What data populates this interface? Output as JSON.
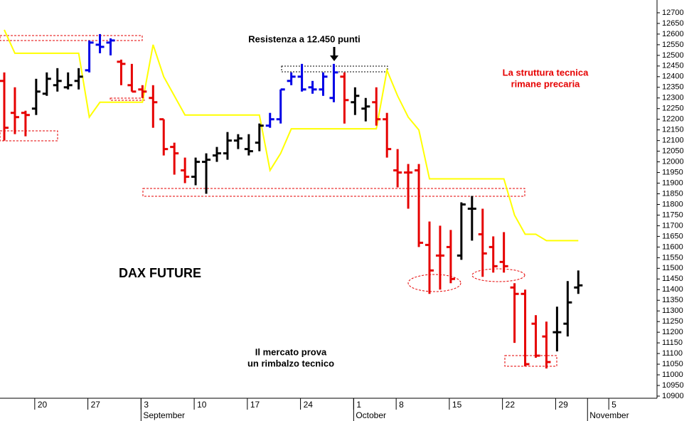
{
  "chart_data": {
    "type": "ohlc",
    "title": "DAX FUTURE",
    "annotations": {
      "resistance": "Resistenza a 12.450 punti",
      "structure": [
        "La struttura tecnica",
        "rimane precaria"
      ],
      "rebound": [
        "Il mercato prova",
        "un rimbalzo tecnico"
      ]
    },
    "categories": [
      null,
      null,
      null,
      "20",
      null,
      null,
      null,
      null,
      "27",
      null,
      null,
      null,
      null,
      "3",
      null,
      null,
      null,
      null,
      "10",
      null,
      null,
      null,
      null,
      "17",
      null,
      null,
      null,
      null,
      "24",
      null,
      null,
      null,
      null,
      "1",
      null,
      null,
      null,
      "8",
      null,
      null,
      null,
      null,
      "15",
      null,
      null,
      null,
      null,
      "22",
      null,
      null,
      null,
      null,
      "29",
      null,
      null,
      null,
      null,
      "5",
      null,
      null,
      null,
      null
    ],
    "category_months": [
      null,
      null,
      null,
      null,
      null,
      null,
      null,
      null,
      null,
      null,
      null,
      null,
      null,
      "September",
      null,
      null,
      null,
      null,
      null,
      null,
      null,
      null,
      null,
      null,
      null,
      null,
      null,
      null,
      null,
      null,
      null,
      null,
      null,
      "October",
      null,
      null,
      null,
      null,
      null,
      null,
      null,
      null,
      null,
      null,
      null,
      null,
      null,
      null,
      null,
      null,
      null,
      null,
      null,
      null,
      null,
      "November",
      null,
      null,
      null,
      null,
      null,
      null
    ],
    "open": [
      12380,
      12230,
      12230,
      12250,
      12320,
      12360,
      12350,
      12380,
      12430,
      12550,
      12560,
      12470,
      12360,
      12340,
      12300,
      12200,
      12070,
      11960,
      11930,
      12000,
      12030,
      12040,
      12100,
      12060,
      12090,
      12170,
      12200,
      12380,
      12400,
      12350,
      12340,
      12300,
      12400,
      12280,
      12250,
      12280,
      12200,
      11960,
      11950,
      11960,
      11610,
      11560,
      11600,
      11560,
      11780,
      11660,
      11600,
      11530,
      11410,
      11380,
      11240,
      11180,
      11200,
      11240,
      11410,
      null,
      null,
      null,
      null,
      null,
      null,
      null
    ],
    "high": [
      12420,
      12350,
      12240,
      12390,
      12420,
      12440,
      12420,
      12440,
      12570,
      12600,
      12580,
      12480,
      12460,
      12360,
      12360,
      12200,
      12090,
      12020,
      12020,
      12040,
      12070,
      12140,
      12130,
      12130,
      12180,
      12230,
      12340,
      12420,
      12460,
      12380,
      12420,
      12460,
      12420,
      12350,
      12300,
      12350,
      12230,
      12060,
      11990,
      11990,
      11720,
      11700,
      11680,
      11810,
      11840,
      11780,
      11650,
      11670,
      11430,
      11400,
      11280,
      11250,
      11320,
      11440,
      11490,
      null,
      null,
      null,
      null,
      null,
      null,
      null
    ],
    "low": [
      12100,
      12130,
      12120,
      12220,
      12310,
      12330,
      12340,
      12340,
      12420,
      12510,
      12500,
      12360,
      12330,
      12300,
      12160,
      12030,
      11940,
      11900,
      11890,
      11850,
      12000,
      12010,
      12060,
      12030,
      12050,
      12160,
      12180,
      12360,
      12330,
      12320,
      12310,
      12280,
      12180,
      12220,
      12190,
      12170,
      12020,
      11880,
      11780,
      11600,
      11380,
      11400,
      11430,
      11540,
      11630,
      11460,
      11480,
      11480,
      11150,
      11040,
      11080,
      11030,
      11110,
      11180,
      11380,
      null,
      null,
      null,
      null,
      null,
      null,
      null
    ],
    "close": [
      12160,
      12210,
      12220,
      12330,
      12390,
      12380,
      12360,
      12400,
      12560,
      12540,
      12570,
      12460,
      12330,
      12330,
      12280,
      12060,
      12040,
      11930,
      12000,
      12010,
      12040,
      12100,
      12110,
      12050,
      12170,
      12200,
      12340,
      12400,
      12340,
      12340,
      12400,
      12420,
      12290,
      12310,
      12260,
      12200,
      12060,
      11950,
      11950,
      11620,
      11490,
      11560,
      11450,
      11800,
      11780,
      11570,
      11510,
      11510,
      11380,
      11050,
      11090,
      11060,
      11200,
      11340,
      11420,
      null,
      null,
      null,
      null,
      null,
      null,
      null
    ],
    "bar_colors": [
      "#e60000",
      "#e60000",
      "#e60000",
      "#000000",
      "#000000",
      "#000000",
      "#000000",
      "#000000",
      "#0000e6",
      "#0000e6",
      "#0000e6",
      "#e60000",
      "#e60000",
      "#e60000",
      "#e60000",
      "#e60000",
      "#e60000",
      "#e60000",
      "#000000",
      "#000000",
      "#000000",
      "#000000",
      "#000000",
      "#000000",
      "#000000",
      "#0000e6",
      "#0000e6",
      "#0000e6",
      "#0000e6",
      "#0000e6",
      "#0000e6",
      "#0000e6",
      "#e60000",
      "#000000",
      "#000000",
      "#e60000",
      "#e60000",
      "#e60000",
      "#e60000",
      "#e60000",
      "#e60000",
      "#e60000",
      "#e60000",
      "#000000",
      "#000000",
      "#e60000",
      "#e60000",
      "#e60000",
      "#e60000",
      "#e60000",
      "#e60000",
      "#e60000",
      "#000000",
      "#000000",
      "#000000",
      null,
      null,
      null,
      null,
      null,
      null,
      null
    ],
    "line": {
      "color": "#ffff00",
      "values": [
        12620,
        12510,
        12510,
        12510,
        12510,
        12510,
        12510,
        12510,
        12210,
        12280,
        12280,
        12280,
        12280,
        12280,
        12550,
        12400,
        12310,
        12220,
        12220,
        12220,
        12220,
        12220,
        12220,
        12220,
        12220,
        11960,
        12040,
        12155,
        12155,
        12155,
        12155,
        12155,
        12155,
        12155,
        12155,
        12155,
        12430,
        12310,
        12210,
        12150,
        11920,
        11920,
        11920,
        11920,
        11920,
        11920,
        11920,
        11920,
        11750,
        11660,
        11660,
        11630,
        11630,
        11630,
        11630,
        null,
        null,
        null,
        null,
        null,
        null,
        null
      ]
    },
    "ylim": [
      10890,
      12760
    ],
    "yticks": [
      10900,
      10950,
      11000,
      11050,
      11100,
      11150,
      11200,
      11250,
      11300,
      11350,
      11400,
      11450,
      11500,
      11550,
      11600,
      11650,
      11700,
      11750,
      11800,
      11850,
      11900,
      11950,
      12000,
      12050,
      12100,
      12150,
      12200,
      12250,
      12300,
      12350,
      12400,
      12450,
      12500,
      12550,
      12600,
      12650,
      12700
    ]
  }
}
